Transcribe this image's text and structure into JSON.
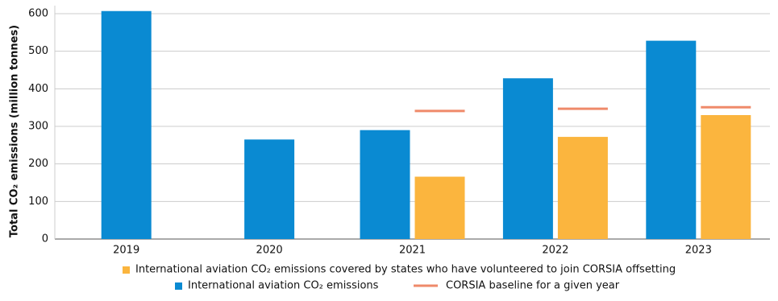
{
  "chart_data": {
    "type": "bar",
    "y_label": "Total CO₂ emissions (million tonnes)",
    "categories": [
      "2019",
      "2020",
      "2021",
      "2022",
      "2023"
    ],
    "series": [
      {
        "name": "International aviation CO₂ emissions",
        "color": "#0a8ad2",
        "style": "bar",
        "values": [
          607,
          265,
          290,
          428,
          528
        ]
      },
      {
        "name": "International aviation CO₂ emissions covered by states who have volunteered to join CORSIA offsetting",
        "color": "#fbb53e",
        "style": "bar",
        "values": [
          null,
          null,
          166,
          272,
          330
        ]
      },
      {
        "name": "CORSIA baseline for a given year",
        "color": "#ef8a6a",
        "style": "dash",
        "values": [
          null,
          null,
          341,
          347,
          351
        ]
      }
    ],
    "ylim": [
      0,
      600
    ],
    "yticks": [
      0,
      100,
      200,
      300,
      400,
      500,
      600
    ],
    "grid": true
  }
}
